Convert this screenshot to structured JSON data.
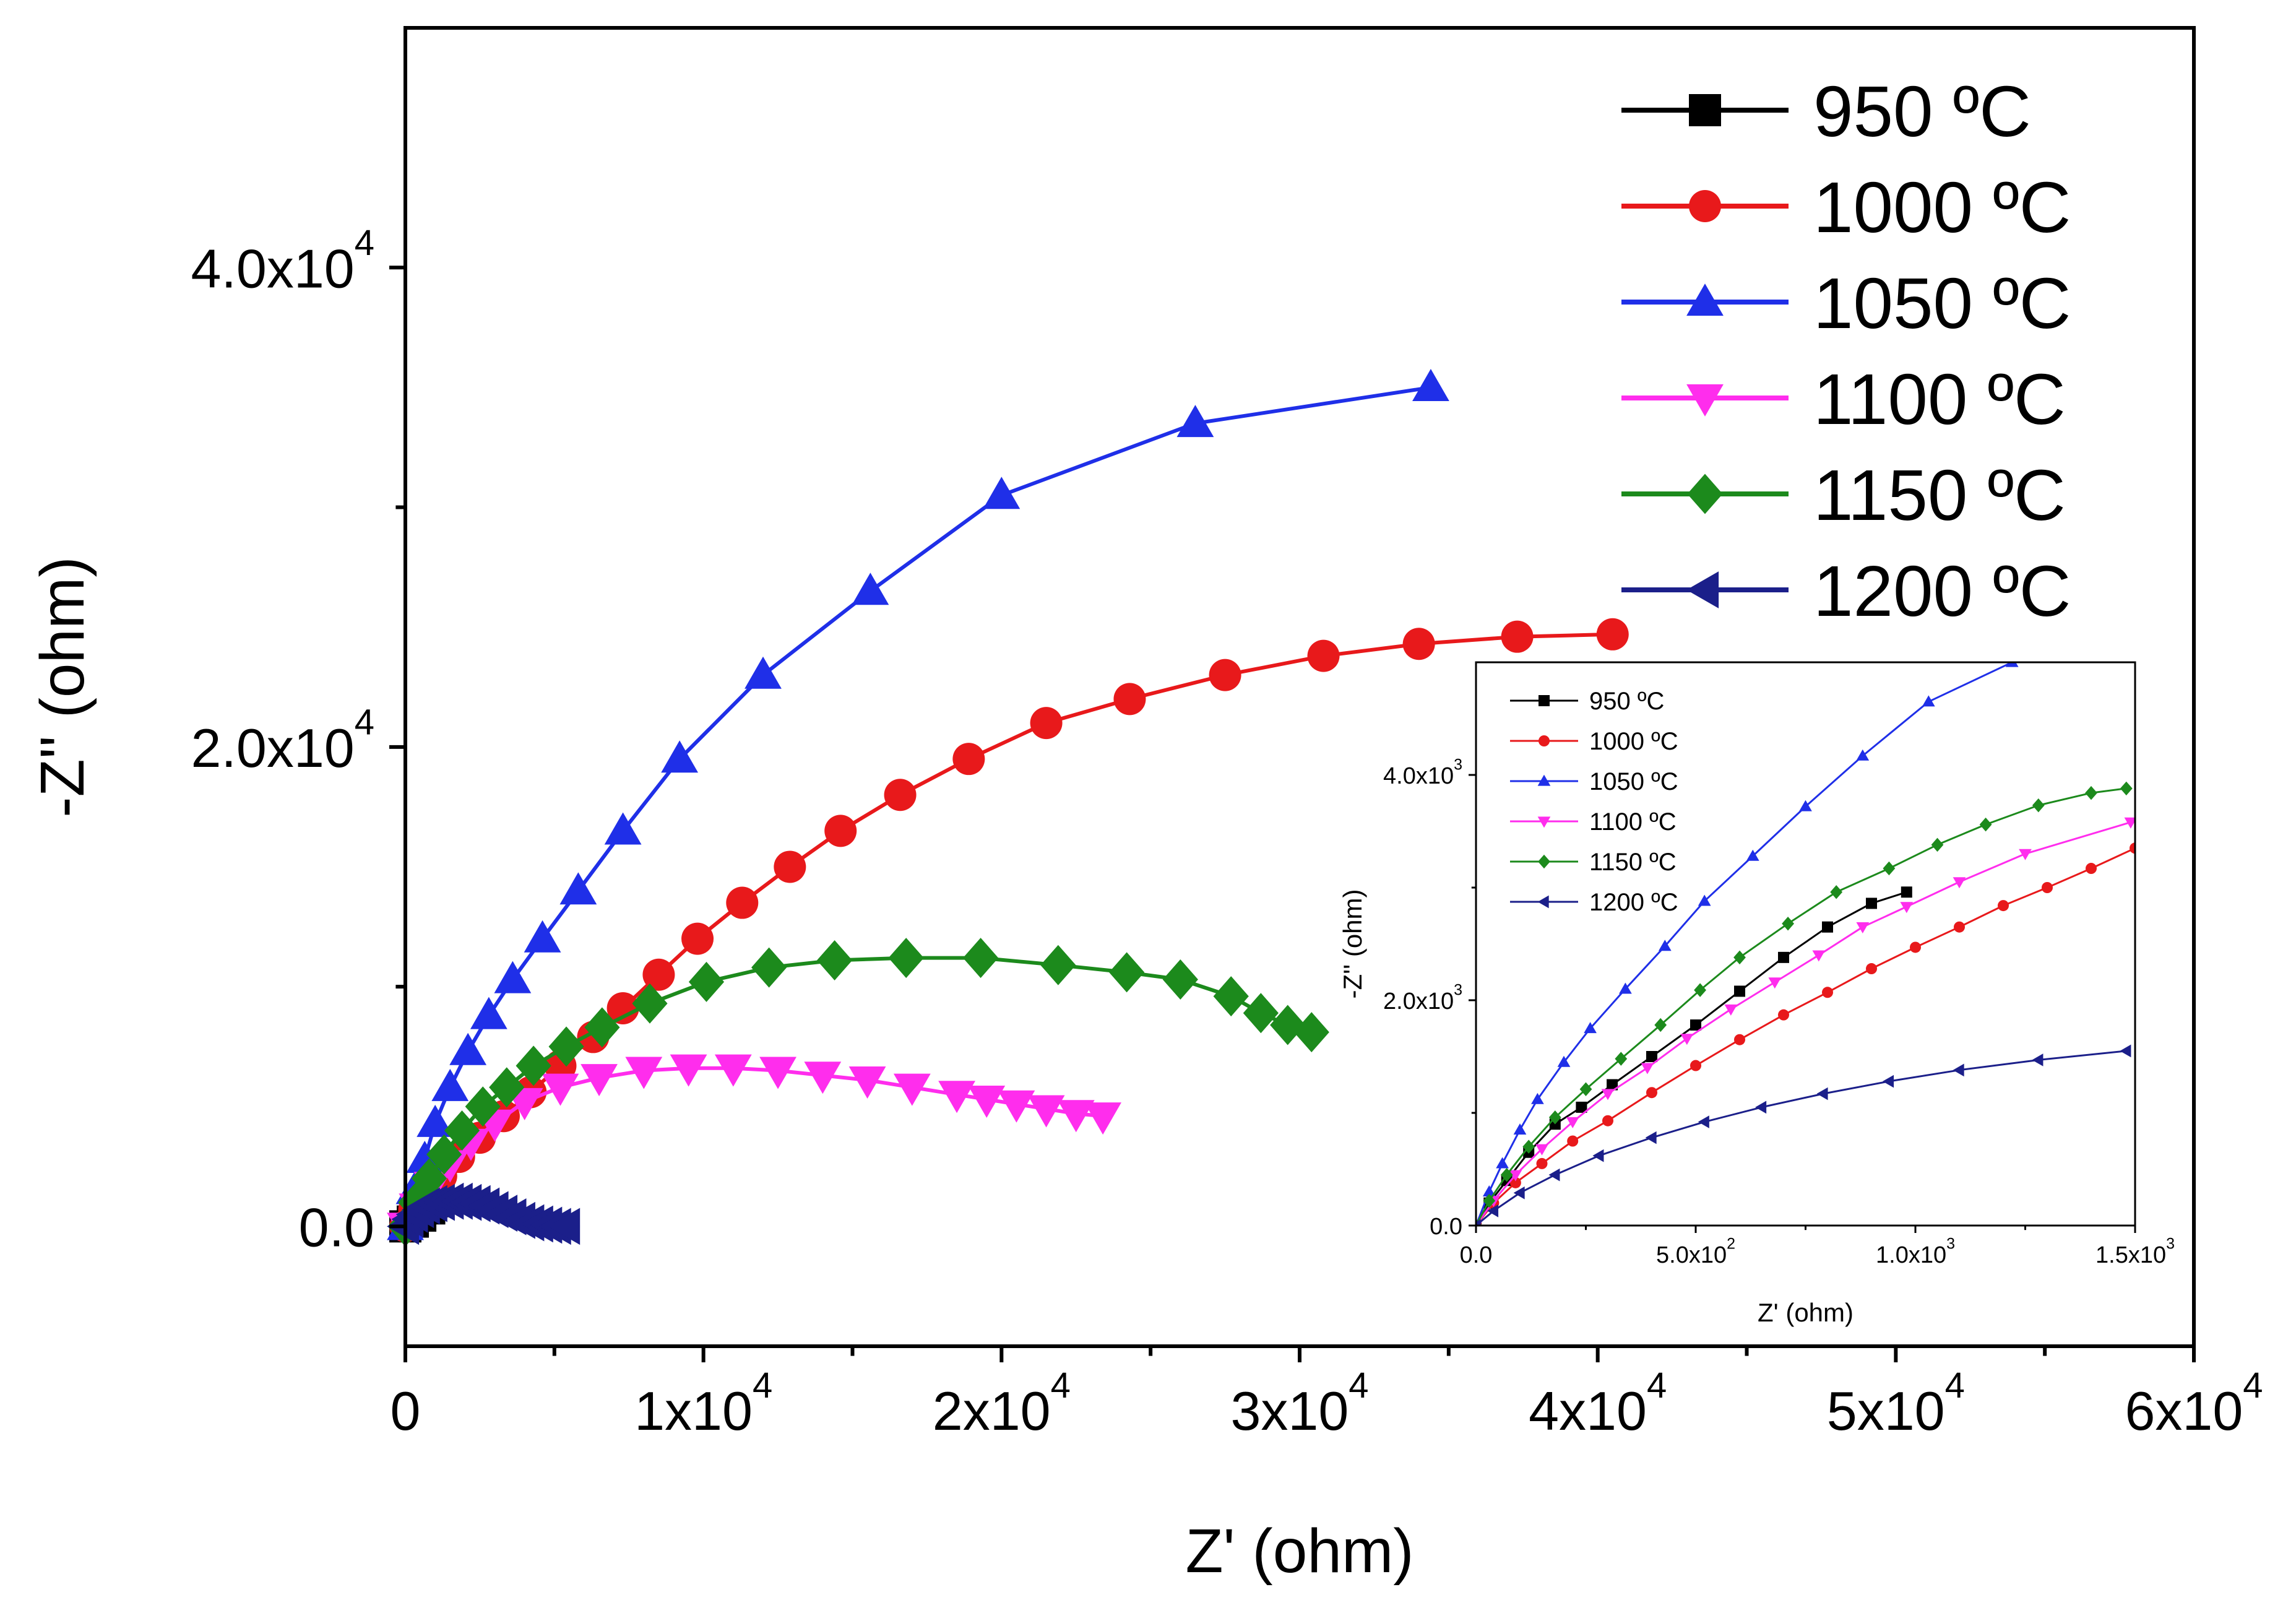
{
  "figure": {
    "main_legend_title": "",
    "inset_legend_title": ""
  },
  "chart_data": [
    {
      "type": "line",
      "title": "",
      "xlabel": "Z' (ohm)",
      "ylabel": "-Z'' (ohm)",
      "xlim": [
        0,
        60000
      ],
      "ylim": [
        -5000,
        50000
      ],
      "grid": false,
      "legend_position": "top-right",
      "x_ticks": [
        {
          "value": 0,
          "mantissa": "0",
          "exponent": ""
        },
        {
          "value": 10000,
          "mantissa": "1x10",
          "exponent": "4"
        },
        {
          "value": 20000,
          "mantissa": "2x10",
          "exponent": "4"
        },
        {
          "value": 30000,
          "mantissa": "3x10",
          "exponent": "4"
        },
        {
          "value": 40000,
          "mantissa": "4x10",
          "exponent": "4"
        },
        {
          "value": 50000,
          "mantissa": "5x10",
          "exponent": "4"
        },
        {
          "value": 60000,
          "mantissa": "6x10",
          "exponent": "4"
        }
      ],
      "y_ticks": [
        {
          "value": 0,
          "mantissa": "0.0",
          "exponent": ""
        },
        {
          "value": 20000,
          "mantissa": "2.0x10",
          "exponent": "4"
        },
        {
          "value": 40000,
          "mantissa": "4.0x10",
          "exponent": "4"
        }
      ],
      "series": [
        {
          "name": "950 ºC",
          "color": "#000000",
          "marker": "square",
          "x": [
            0,
            250,
            500,
            800,
            1100
          ],
          "y": [
            0,
            200,
            450,
            750,
            1050
          ]
        },
        {
          "name": "1000 ºC",
          "color": "#e8191b",
          "marker": "circle",
          "x": [
            0,
            300,
            700,
            1200,
            1800,
            2500,
            3300,
            4200,
            5200,
            6300,
            7300,
            8500,
            9800,
            11300,
            12900,
            14600,
            16600,
            18900,
            21500,
            24300,
            27500,
            30800,
            34000,
            37300,
            40500
          ],
          "y": [
            0,
            700,
            1400,
            2100,
            2900,
            3700,
            4600,
            5600,
            6700,
            7900,
            9100,
            10500,
            12000,
            13500,
            15000,
            16500,
            18000,
            19500,
            21000,
            22000,
            23000,
            23800,
            24300,
            24600,
            24700
          ]
        },
        {
          "name": "1050 ºC",
          "color": "#1f2fe8",
          "marker": "triangle-up",
          "x": [
            0,
            300,
            650,
            1000,
            1500,
            2100,
            2800,
            3600,
            4600,
            5800,
            7300,
            9200,
            12000,
            15600,
            20000,
            26500,
            34400
          ],
          "y": [
            0,
            1500,
            2800,
            4300,
            5800,
            7300,
            8800,
            10300,
            12000,
            14000,
            16500,
            19500,
            23000,
            26500,
            30500,
            33500,
            35000
          ]
        },
        {
          "name": "1100 ºC",
          "color": "#ff2ded",
          "marker": "triangle-down",
          "x": [
            0,
            400,
            900,
            1500,
            2200,
            3000,
            4000,
            5200,
            6500,
            8000,
            9500,
            11000,
            12500,
            14000,
            15500,
            17000,
            18500,
            19500,
            20500,
            21500,
            22500,
            23400
          ],
          "y": [
            0,
            800,
            1700,
            2600,
            3500,
            4300,
            5200,
            5800,
            6200,
            6500,
            6600,
            6600,
            6500,
            6300,
            6100,
            5800,
            5500,
            5300,
            5100,
            4900,
            4700,
            4600
          ]
        },
        {
          "name": "1150 ºC",
          "color": "#1c8a1c",
          "marker": "diamond",
          "x": [
            0,
            350,
            800,
            1300,
            1900,
            2600,
            3400,
            4300,
            5400,
            6600,
            8200,
            10100,
            12200,
            14400,
            16800,
            19300,
            21900,
            24200,
            26000,
            27700,
            28700,
            29600,
            30400
          ],
          "y": [
            0,
            1000,
            2000,
            3000,
            4000,
            5000,
            5800,
            6700,
            7500,
            8300,
            9300,
            10200,
            10800,
            11100,
            11200,
            11200,
            10900,
            10600,
            10300,
            9600,
            8900,
            8400,
            8100
          ]
        },
        {
          "name": "1200 ºC",
          "color": "#1b1f8a",
          "marker": "triangle-left",
          "x": [
            0,
            150,
            300,
            500,
            700,
            950,
            1200,
            1500,
            1800,
            2100,
            2400,
            2700,
            3000,
            3300,
            3600,
            3900,
            4200,
            4500,
            4800,
            5100,
            5400
          ],
          "y": [
            0,
            300,
            500,
            700,
            850,
            950,
            1000,
            1050,
            1050,
            1000,
            950,
            850,
            700,
            550,
            400,
            250,
            150,
            100,
            50,
            0,
            0
          ]
        }
      ]
    },
    {
      "type": "line",
      "title": "",
      "xlabel": "Z' (ohm)",
      "ylabel": "-Z'' (ohm)",
      "xlim": [
        0,
        1500
      ],
      "ylim": [
        0,
        5000
      ],
      "grid": false,
      "legend_position": "top-left",
      "x_ticks": [
        {
          "value": 0,
          "mantissa": "0.0",
          "exponent": ""
        },
        {
          "value": 500,
          "mantissa": "5.0x10",
          "exponent": "2"
        },
        {
          "value": 1000,
          "mantissa": "1.0x10",
          "exponent": "3"
        },
        {
          "value": 1500,
          "mantissa": "1.5x10",
          "exponent": "3"
        }
      ],
      "y_ticks": [
        {
          "value": 0,
          "mantissa": "0.0",
          "exponent": ""
        },
        {
          "value": 2000,
          "mantissa": "2.0x10",
          "exponent": "3"
        },
        {
          "value": 4000,
          "mantissa": "4.0x10",
          "exponent": "3"
        }
      ],
      "series": [
        {
          "name": "950 ºC",
          "color": "#000000",
          "marker": "square",
          "x": [
            0,
            30,
            70,
            120,
            180,
            240,
            310,
            400,
            500,
            600,
            700,
            800,
            900,
            980
          ],
          "y": [
            0,
            200,
            400,
            650,
            900,
            1050,
            1250,
            1500,
            1780,
            2080,
            2380,
            2650,
            2860,
            2960
          ]
        },
        {
          "name": "1000 ºC",
          "color": "#e8191b",
          "marker": "circle",
          "x": [
            0,
            40,
            90,
            150,
            220,
            300,
            400,
            500,
            600,
            700,
            800,
            900,
            1000,
            1100,
            1200,
            1300,
            1400,
            1500
          ],
          "y": [
            0,
            200,
            380,
            550,
            750,
            930,
            1180,
            1420,
            1650,
            1870,
            2070,
            2280,
            2470,
            2650,
            2840,
            3000,
            3170,
            3350
          ]
        },
        {
          "name": "1050 ºC",
          "color": "#1f2fe8",
          "marker": "triangle-up",
          "x": [
            0,
            30,
            60,
            100,
            140,
            200,
            260,
            340,
            430,
            520,
            630,
            750,
            880,
            1030,
            1220
          ],
          "y": [
            0,
            300,
            550,
            850,
            1120,
            1450,
            1750,
            2100,
            2480,
            2880,
            3280,
            3720,
            4170,
            4650,
            5000
          ]
        },
        {
          "name": "1100 ºC",
          "color": "#ff2ded",
          "marker": "triangle-down",
          "x": [
            0,
            40,
            90,
            150,
            220,
            300,
            390,
            480,
            580,
            680,
            780,
            880,
            980,
            1100,
            1250,
            1490
          ],
          "y": [
            0,
            220,
            450,
            680,
            920,
            1170,
            1400,
            1660,
            1920,
            2160,
            2400,
            2650,
            2830,
            3050,
            3300,
            3580
          ]
        },
        {
          "name": "1150 ºC",
          "color": "#1c8a1c",
          "marker": "diamond",
          "x": [
            0,
            30,
            70,
            120,
            180,
            250,
            330,
            420,
            510,
            600,
            710,
            820,
            940,
            1050,
            1160,
            1280,
            1400,
            1480
          ],
          "y": [
            0,
            220,
            450,
            700,
            960,
            1210,
            1480,
            1780,
            2090,
            2380,
            2680,
            2960,
            3170,
            3380,
            3560,
            3730,
            3840,
            3880
          ]
        },
        {
          "name": "1200 ºC",
          "color": "#1b1f8a",
          "marker": "triangle-left",
          "x": [
            0,
            40,
            100,
            180,
            280,
            400,
            520,
            650,
            790,
            940,
            1100,
            1280,
            1480
          ],
          "y": [
            0,
            130,
            290,
            450,
            620,
            780,
            920,
            1050,
            1170,
            1280,
            1380,
            1470,
            1550
          ]
        }
      ]
    }
  ]
}
